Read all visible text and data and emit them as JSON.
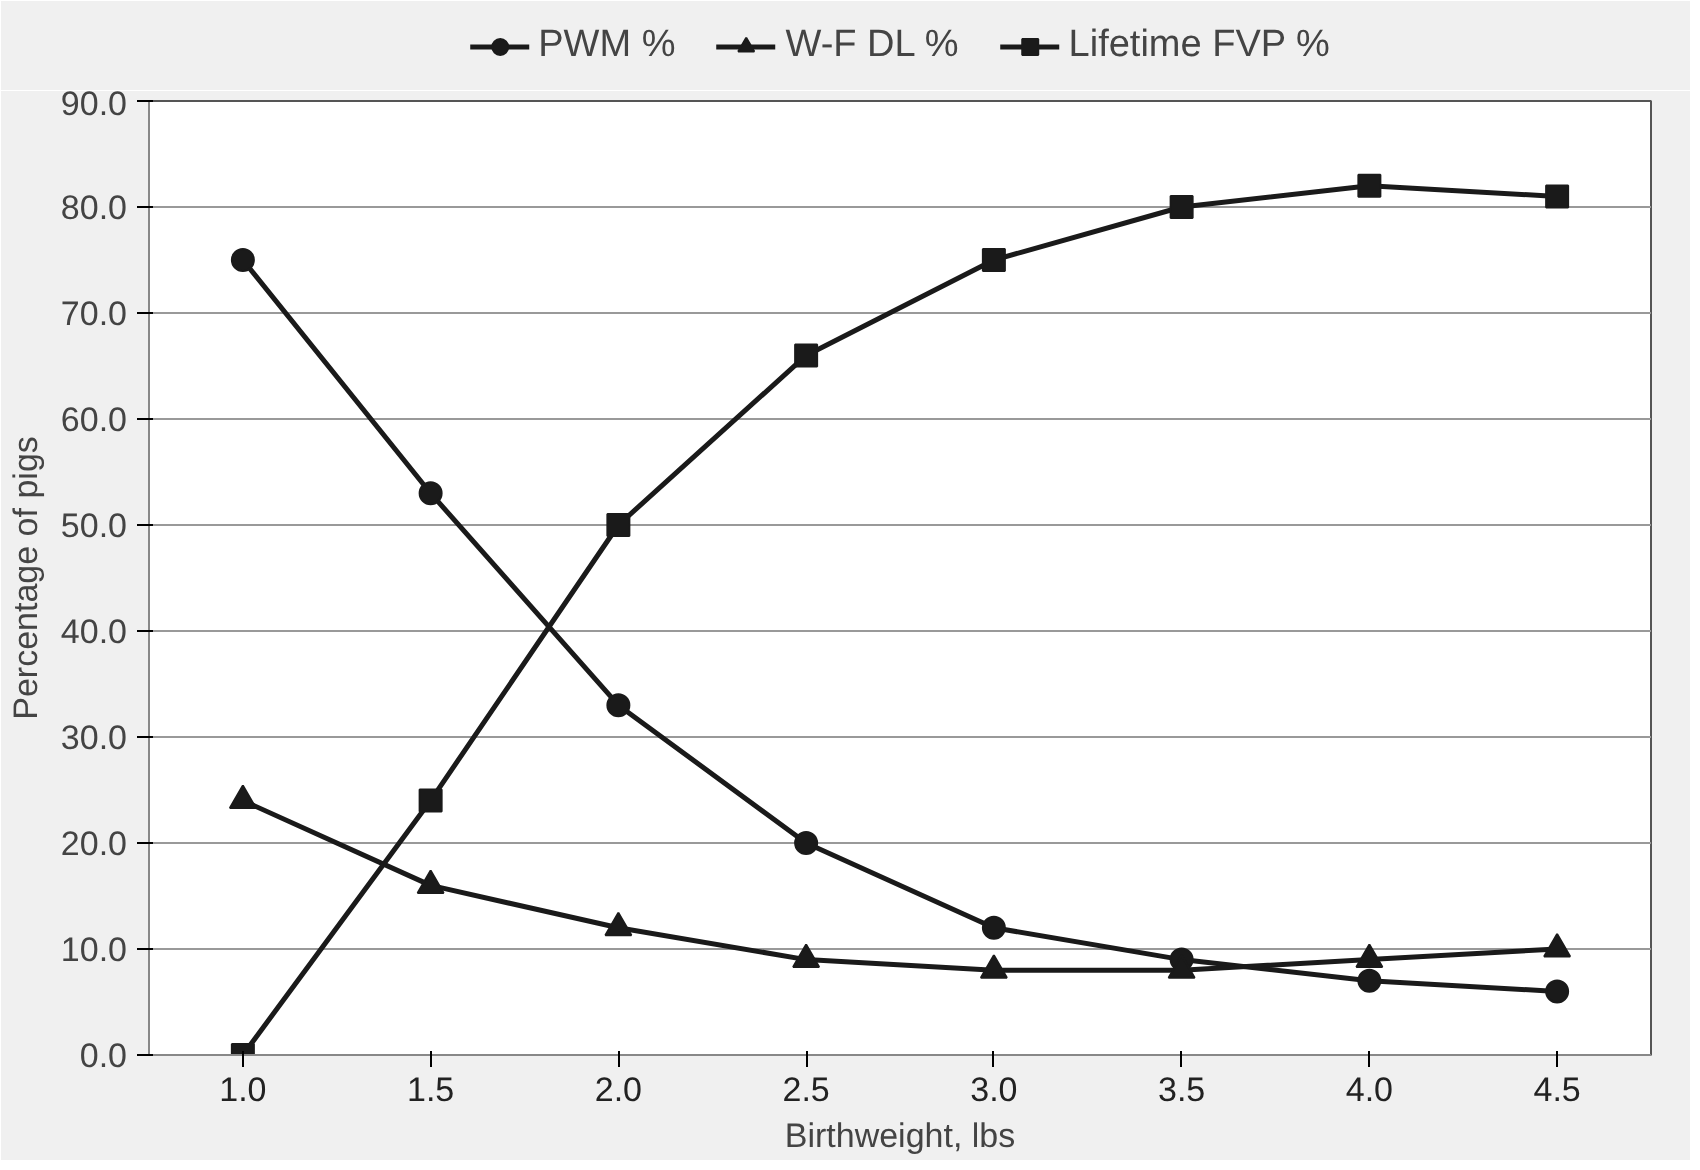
{
  "chart_data": {
    "type": "line",
    "xlabel": "Birthweight, lbs",
    "ylabel": "Percentage of pigs",
    "categories": [
      "1.0",
      "1.5",
      "2.0",
      "2.5",
      "3.0",
      "3.5",
      "4.0",
      "4.5"
    ],
    "series": [
      {
        "name": "PWM %",
        "color": "#1a1a1a",
        "marker": "circle",
        "values": [
          75,
          53,
          33,
          20,
          12,
          9,
          7,
          6
        ]
      },
      {
        "name": "W-F DL %",
        "color": "#1a1a1a",
        "marker": "triangle",
        "values": [
          24,
          16,
          12,
          9,
          8,
          8,
          9,
          10
        ]
      },
      {
        "name": "Lifetime FVP %",
        "color": "#1a1a1a",
        "marker": "square",
        "values": [
          0,
          24,
          50,
          66,
          75,
          80,
          82,
          81
        ]
      }
    ],
    "ylim": [
      0,
      90
    ],
    "yticks": [
      {
        "value": 0,
        "label": "0.0"
      },
      {
        "value": 10,
        "label": "10.0"
      },
      {
        "value": 20,
        "label": "20.0"
      },
      {
        "value": 30,
        "label": "30.0"
      },
      {
        "value": 40,
        "label": "40.0"
      },
      {
        "value": 50,
        "label": "50.0"
      },
      {
        "value": 60,
        "label": "60.0"
      },
      {
        "value": 70,
        "label": "70.0"
      },
      {
        "value": 80,
        "label": "80.0"
      },
      {
        "value": 90,
        "label": "90.0"
      }
    ],
    "grid": "y",
    "legend": "top",
    "line_style": "solid"
  }
}
